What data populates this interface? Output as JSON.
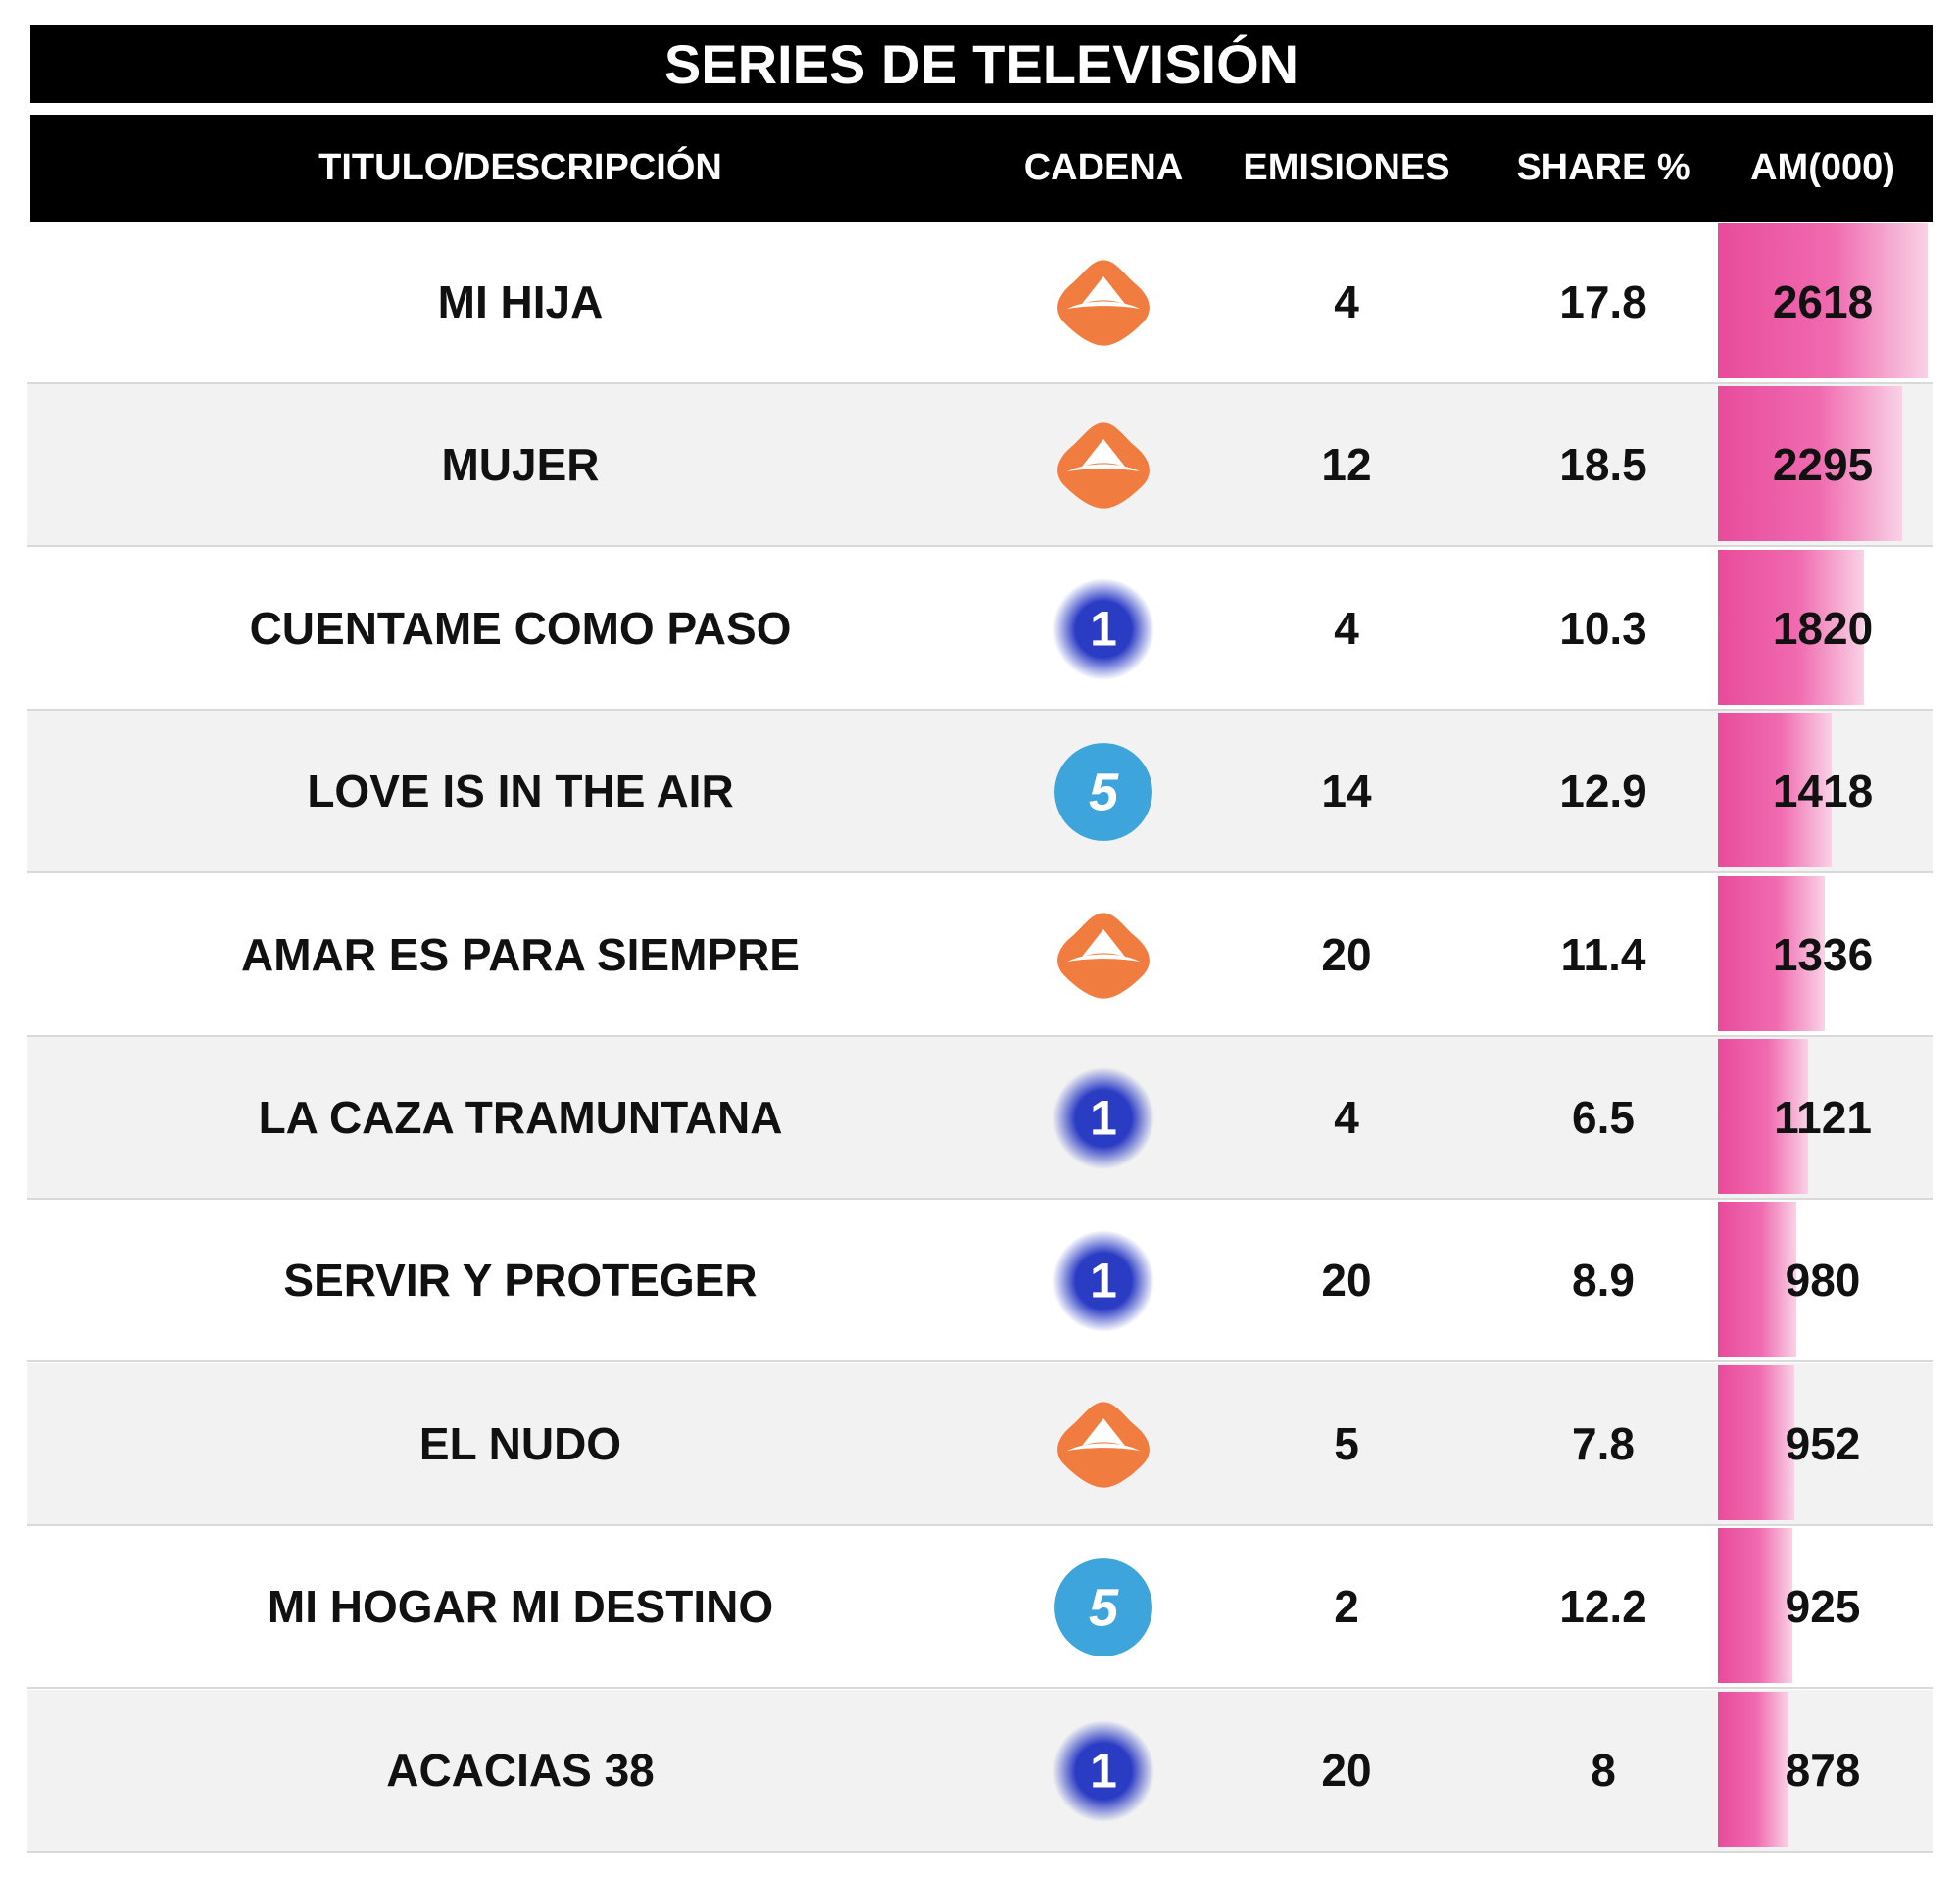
{
  "title": "SERIES DE TELEVISIÓN",
  "table": {
    "headers": [
      "TITULO/DESCRIPCIÓN",
      "CADENA",
      "EMISIONES",
      "SHARE %",
      "AM(000)"
    ],
    "rows": [
      [
        "MI HIJA",
        null,
        4,
        17.8,
        2618
      ],
      [
        "MUJER",
        null,
        12,
        18.5,
        2295
      ],
      [
        "CUENTAME COMO PASO",
        "1",
        4,
        10.3,
        1820
      ],
      [
        "LOVE IS IN THE AIR",
        "5",
        14,
        12.9,
        1418
      ],
      [
        "AMAR ES PARA SIEMPRE",
        null,
        20,
        11.4,
        1336
      ],
      [
        "LA CAZA TRAMUNTANA",
        "1",
        4,
        6.5,
        1121
      ],
      [
        "SERVIR Y PROTEGER",
        "1",
        20,
        8.9,
        980
      ],
      [
        "EL NUDO",
        null,
        5,
        7.8,
        952
      ],
      [
        "MI HOGAR MI DESTINO",
        "5",
        2,
        12.2,
        925
      ],
      [
        "ACACIAS 38",
        "1",
        20,
        8,
        878
      ]
    ]
  }
}
